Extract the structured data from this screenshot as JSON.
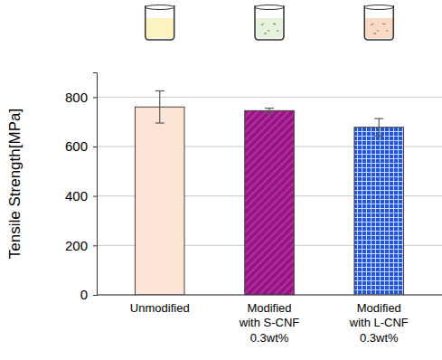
{
  "chart_data": {
    "type": "bar",
    "y_label": "Tensile Strength[MPa]",
    "categories": [
      "Unmodified",
      "Modified\nwith S-CNF\n0.3wt%",
      "Modified\nwith L-CNF\n0.3wt%"
    ],
    "values": [
      760,
      745,
      678
    ],
    "errors": [
      65,
      10,
      35
    ],
    "colors": [
      "#fce4d6",
      "#8e1b7c",
      "#2256d8"
    ],
    "ylim": [
      0,
      900
    ],
    "yticks": [
      0,
      200,
      400,
      600,
      800
    ],
    "grid": true
  }
}
